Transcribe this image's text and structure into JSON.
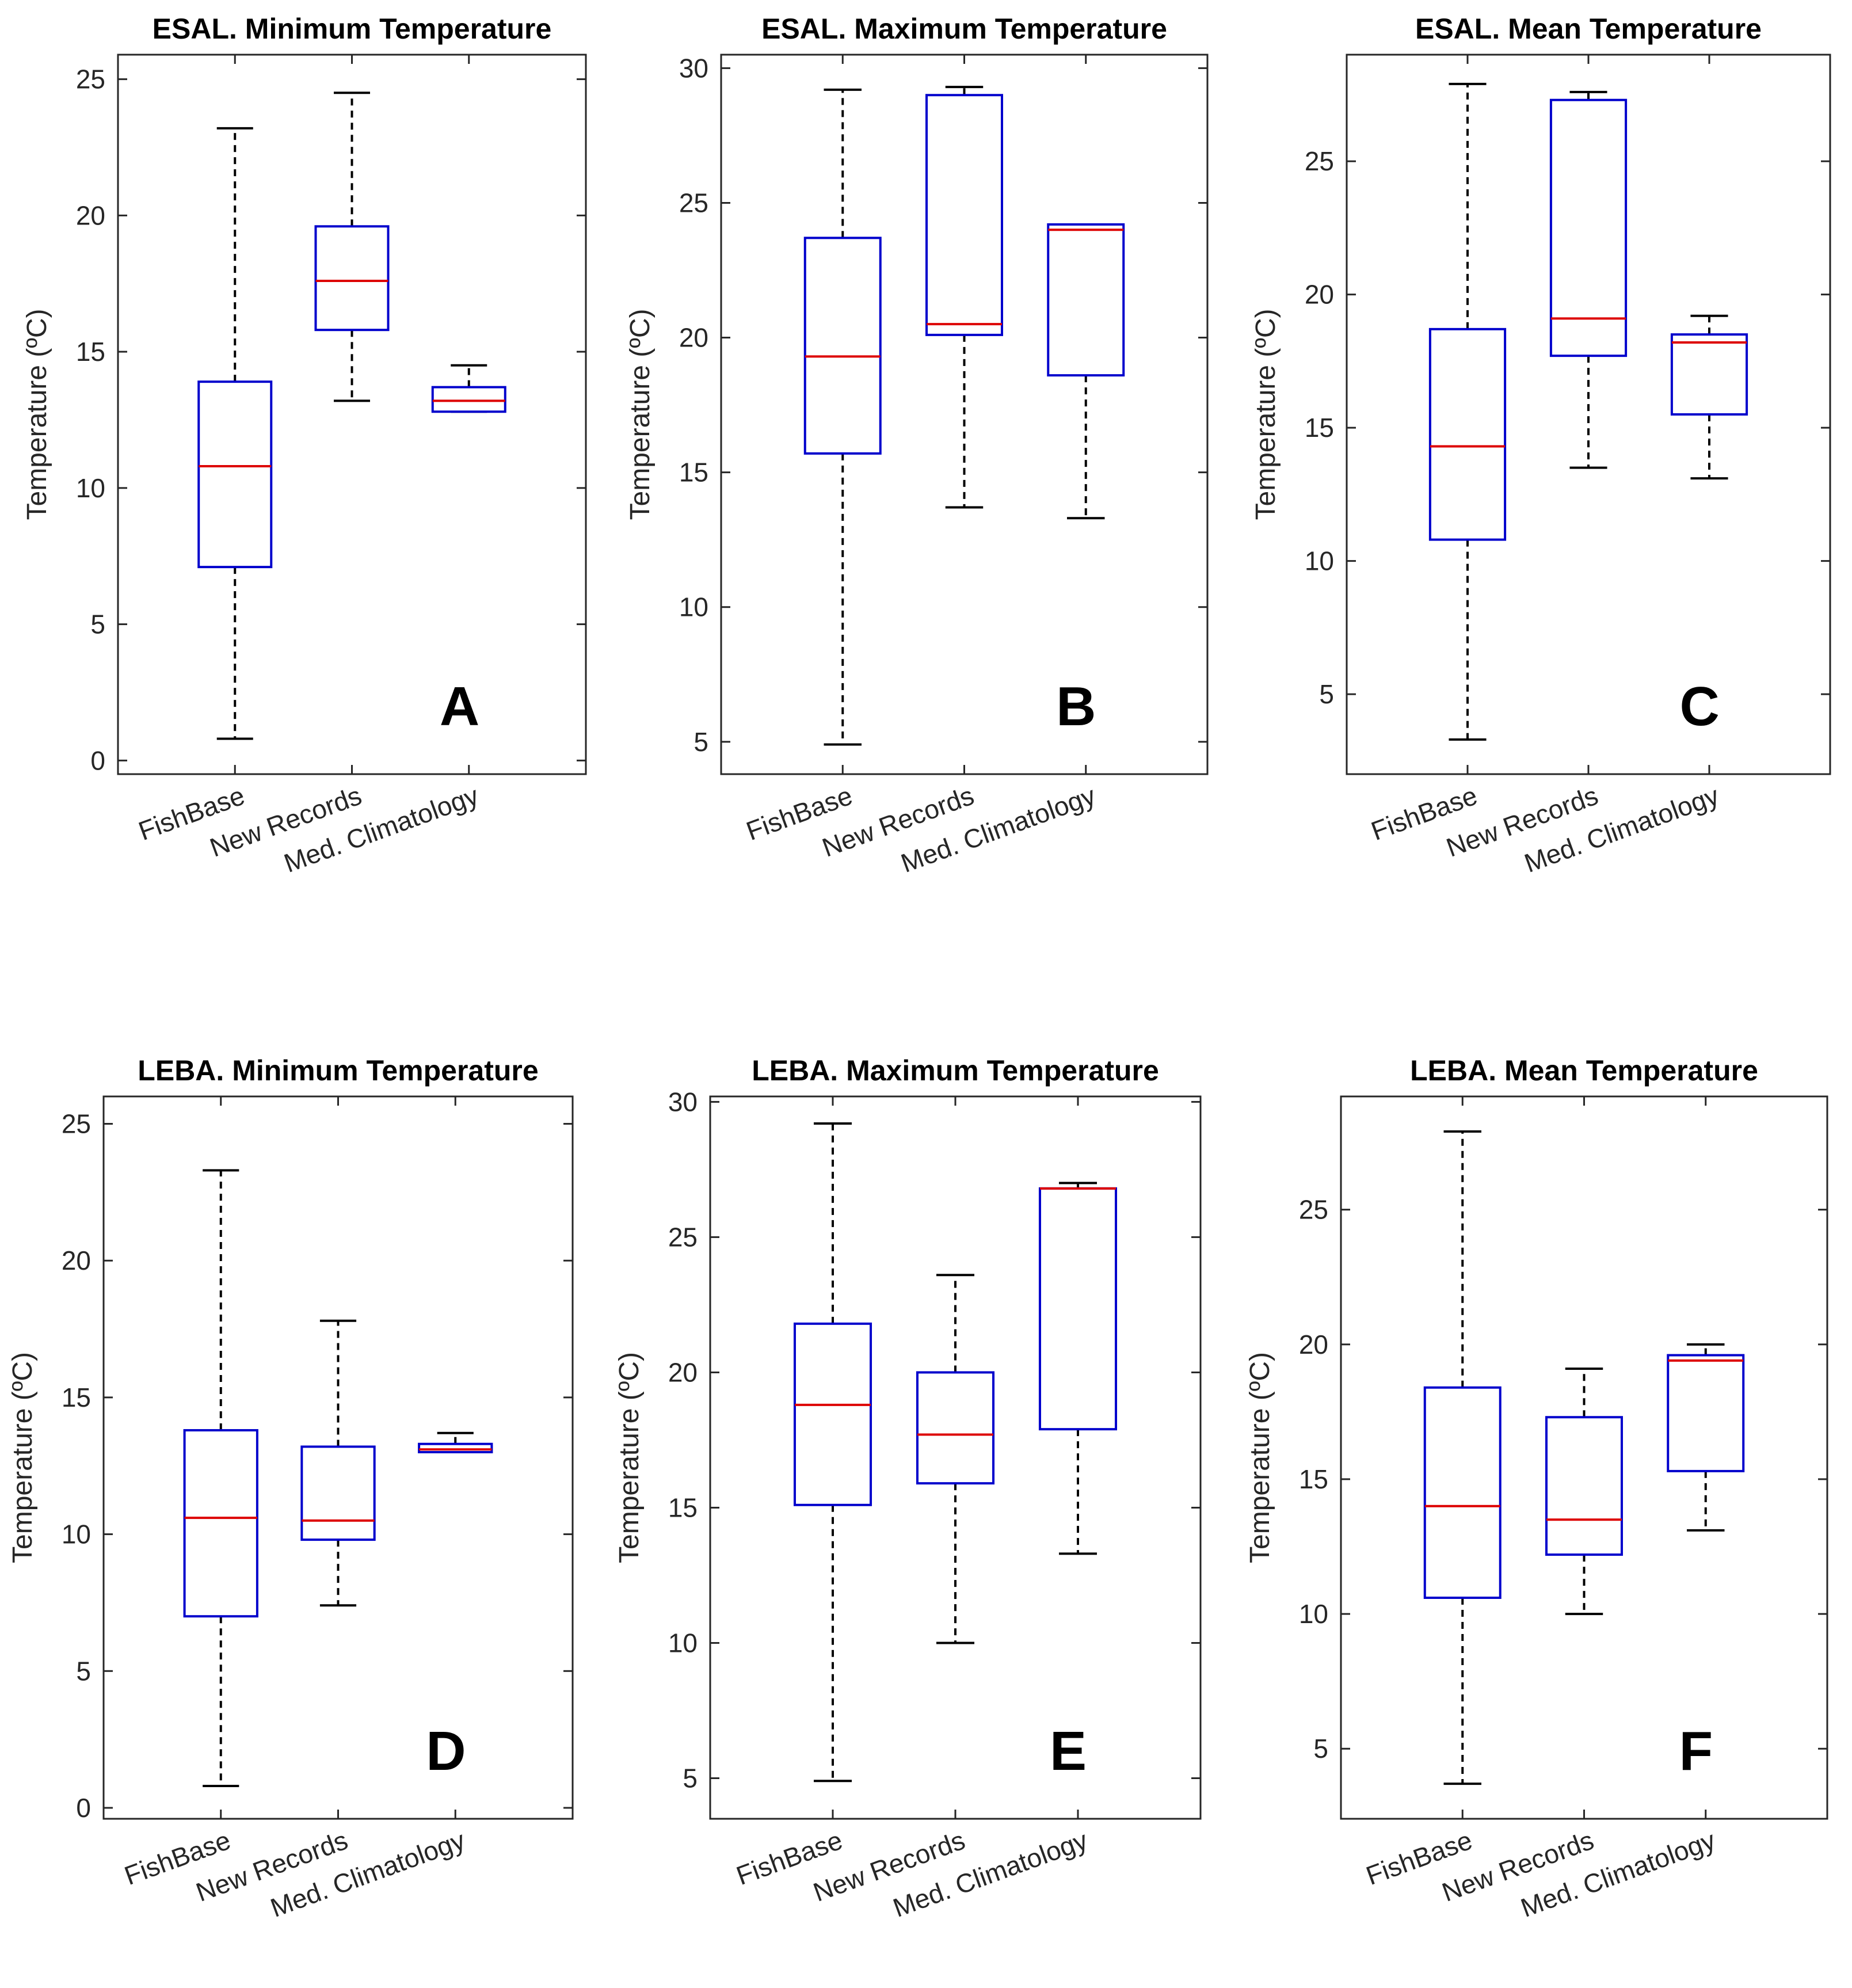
{
  "chart_data": [
    {
      "type": "boxplot",
      "title": "ESAL. Minimum Temperature",
      "panel_letter": "A",
      "ylabel": "Temperature (ºC)",
      "ylim": [
        -0.5,
        25.9
      ],
      "yticks": [
        0,
        5,
        10,
        15,
        20,
        25
      ],
      "categories": [
        "FishBase",
        "New Records",
        "Med. Climatology"
      ],
      "boxes": [
        {
          "whisker_low": 0.8,
          "q1": 7.1,
          "median": 10.8,
          "q3": 13.9,
          "whisker_high": 23.2
        },
        {
          "whisker_low": 13.2,
          "q1": 15.8,
          "median": 17.6,
          "q3": 19.6,
          "whisker_high": 24.5
        },
        {
          "whisker_low": 12.8,
          "q1": 12.8,
          "median": 13.2,
          "q3": 13.7,
          "whisker_high": 14.5
        }
      ]
    },
    {
      "type": "boxplot",
      "title": "ESAL. Maximum Temperature",
      "panel_letter": "B",
      "ylabel": "Temperature (ºC)",
      "ylim": [
        3.8,
        30.5
      ],
      "yticks": [
        5,
        10,
        15,
        20,
        25,
        30
      ],
      "categories": [
        "FishBase",
        "New Records",
        "Med. Climatology"
      ],
      "boxes": [
        {
          "whisker_low": 4.9,
          "q1": 15.7,
          "median": 19.3,
          "q3": 23.7,
          "whisker_high": 29.2
        },
        {
          "whisker_low": 13.7,
          "q1": 20.1,
          "median": 20.5,
          "q3": 29.0,
          "whisker_high": 29.3
        },
        {
          "whisker_low": 13.3,
          "q1": 18.6,
          "median": 24.0,
          "q3": 24.2,
          "whisker_high": 24.2
        }
      ]
    },
    {
      "type": "boxplot",
      "title": "ESAL. Mean Temperature",
      "panel_letter": "C",
      "ylabel": "Temperature (ºC)",
      "ylim": [
        2.0,
        29.0
      ],
      "yticks": [
        5,
        10,
        15,
        20,
        25
      ],
      "categories": [
        "FishBase",
        "New Records",
        "Med. Climatology"
      ],
      "boxes": [
        {
          "whisker_low": 3.3,
          "q1": 10.8,
          "median": 14.3,
          "q3": 18.7,
          "whisker_high": 27.9
        },
        {
          "whisker_low": 13.5,
          "q1": 17.7,
          "median": 19.1,
          "q3": 27.3,
          "whisker_high": 27.6
        },
        {
          "whisker_low": 13.1,
          "q1": 15.5,
          "median": 18.2,
          "q3": 18.5,
          "whisker_high": 19.2
        }
      ]
    },
    {
      "type": "boxplot",
      "title": "LEBA. Minimum Temperature",
      "panel_letter": "D",
      "ylabel": "Temperature (ºC)",
      "ylim": [
        -0.4,
        26.0
      ],
      "yticks": [
        0,
        5,
        10,
        15,
        20,
        25
      ],
      "categories": [
        "FishBase",
        "New Records",
        "Med. Climatology"
      ],
      "boxes": [
        {
          "whisker_low": 0.8,
          "q1": 7.0,
          "median": 10.6,
          "q3": 13.8,
          "whisker_high": 23.3
        },
        {
          "whisker_low": 7.4,
          "q1": 9.8,
          "median": 10.5,
          "q3": 13.2,
          "whisker_high": 17.8
        },
        {
          "whisker_low": 13.0,
          "q1": 13.0,
          "median": 13.1,
          "q3": 13.3,
          "whisker_high": 13.7
        }
      ]
    },
    {
      "type": "boxplot",
      "title": "LEBA. Maximum Temperature",
      "panel_letter": "E",
      "ylabel": "Temperature (ºC)",
      "ylim": [
        3.5,
        30.2
      ],
      "yticks": [
        5,
        10,
        15,
        20,
        25,
        30
      ],
      "categories": [
        "FishBase",
        "New Records",
        "Med. Climatology"
      ],
      "boxes": [
        {
          "whisker_low": 4.9,
          "q1": 15.1,
          "median": 18.8,
          "q3": 21.8,
          "whisker_high": 29.2
        },
        {
          "whisker_low": 10.0,
          "q1": 15.9,
          "median": 17.7,
          "q3": 20.0,
          "whisker_high": 23.6
        },
        {
          "whisker_low": 13.3,
          "q1": 17.9,
          "median": 26.8,
          "q3": 26.8,
          "whisker_high": 27.0
        }
      ]
    },
    {
      "type": "boxplot",
      "title": "LEBA. Mean Temperature",
      "panel_letter": "F",
      "ylabel": "Temperature (ºC)",
      "ylim": [
        2.4,
        29.2
      ],
      "yticks": [
        5,
        10,
        15,
        20,
        25
      ],
      "categories": [
        "FishBase",
        "New Records",
        "Med. Climatology"
      ],
      "boxes": [
        {
          "whisker_low": 3.7,
          "q1": 10.6,
          "median": 14.0,
          "q3": 18.4,
          "whisker_high": 27.9
        },
        {
          "whisker_low": 10.0,
          "q1": 12.2,
          "median": 13.5,
          "q3": 17.3,
          "whisker_high": 19.1
        },
        {
          "whisker_low": 13.1,
          "q1": 15.3,
          "median": 19.4,
          "q3": 19.6,
          "whisker_high": 20.0
        }
      ]
    }
  ],
  "colors": {
    "box": "#0000cc",
    "median": "#dd0000",
    "whisker": "#000000",
    "axes": "#262626"
  }
}
